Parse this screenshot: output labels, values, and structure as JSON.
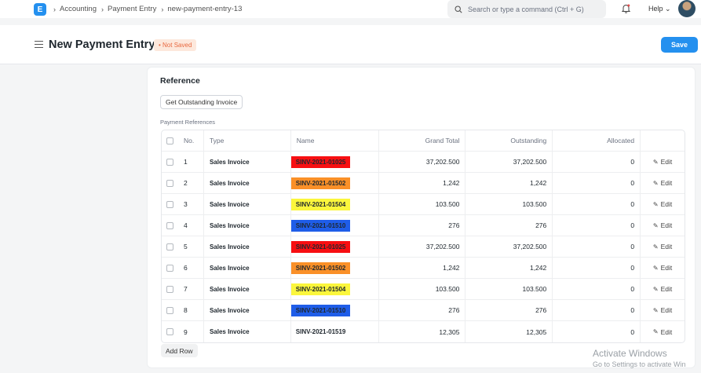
{
  "navbar": {
    "logo_letter": "E",
    "breadcrumbs": [
      "Accounting",
      "Payment Entry",
      "new-payment-entry-13"
    ],
    "search_placeholder": "Search or type a command (Ctrl + G)",
    "help_label": "Help"
  },
  "header": {
    "title": "New Payment Entry",
    "status": "Not Saved",
    "save_label": "Save"
  },
  "reference": {
    "section_title": "Reference",
    "get_outstanding_label": "Get Outstanding Invoice",
    "field_label": "Payment References",
    "columns": {
      "no": "No.",
      "type": "Type",
      "name": "Name",
      "grand_total": "Grand Total",
      "outstanding": "Outstanding",
      "allocated": "Allocated"
    },
    "edit_label": "Edit",
    "rows": [
      {
        "no": "1",
        "type": "Sales Invoice",
        "name": "SINV-2021-01025",
        "grand_total": "37,202.500",
        "outstanding": "37,202.500",
        "allocated": "0",
        "highlight": "#f70f12"
      },
      {
        "no": "2",
        "type": "Sales Invoice",
        "name": "SINV-2021-01502",
        "grand_total": "1,242",
        "outstanding": "1,242",
        "allocated": "0",
        "highlight": "#fa9028"
      },
      {
        "no": "3",
        "type": "Sales Invoice",
        "name": "SINV-2021-01504",
        "grand_total": "103.500",
        "outstanding": "103.500",
        "allocated": "0",
        "highlight": "#fbf63c"
      },
      {
        "no": "4",
        "type": "Sales Invoice",
        "name": "SINV-2021-01510",
        "grand_total": "276",
        "outstanding": "276",
        "allocated": "0",
        "highlight": "#1f5de8"
      },
      {
        "no": "5",
        "type": "Sales Invoice",
        "name": "SINV-2021-01025",
        "grand_total": "37,202.500",
        "outstanding": "37,202.500",
        "allocated": "0",
        "highlight": "#f70f12"
      },
      {
        "no": "6",
        "type": "Sales Invoice",
        "name": "SINV-2021-01502",
        "grand_total": "1,242",
        "outstanding": "1,242",
        "allocated": "0",
        "highlight": "#fa9028"
      },
      {
        "no": "7",
        "type": "Sales Invoice",
        "name": "SINV-2021-01504",
        "grand_total": "103.500",
        "outstanding": "103.500",
        "allocated": "0",
        "highlight": "#fbf63c"
      },
      {
        "no": "8",
        "type": "Sales Invoice",
        "name": "SINV-2021-01510",
        "grand_total": "276",
        "outstanding": "276",
        "allocated": "0",
        "highlight": "#1f5de8"
      },
      {
        "no": "9",
        "type": "Sales Invoice",
        "name": "SINV-2021-01519",
        "grand_total": "12,305",
        "outstanding": "12,305",
        "allocated": "0",
        "highlight": ""
      }
    ],
    "add_row_label": "Add Row"
  },
  "watermark": {
    "title": "Activate Windows",
    "subtitle": "Go to Settings to activate Win"
  },
  "colors": {
    "accent": "#2490ef",
    "status_text": "#e8683f",
    "status_bg": "#fde8dc"
  }
}
